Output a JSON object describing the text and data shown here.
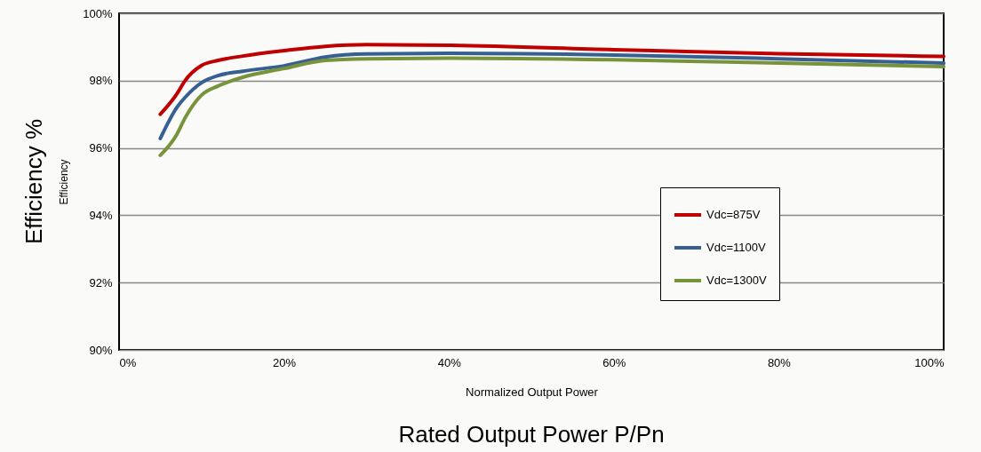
{
  "chart_data": {
    "type": "line",
    "xlabel": "Rated Output Power P/Pn",
    "ylabel": "Efficiency %",
    "annotations": [
      "Efficiency",
      "Normalized Output Power"
    ],
    "x": [
      5,
      7,
      8,
      10,
      12,
      15,
      20,
      25,
      30,
      40,
      60,
      80,
      100
    ],
    "series": [
      {
        "name": "Vdc=875V",
        "color": "#c00000",
        "values": [
          97.0,
          97.6,
          98.0,
          98.45,
          98.6,
          98.73,
          98.89,
          99.02,
          99.07,
          99.05,
          98.92,
          98.8,
          98.72
        ]
      },
      {
        "name": "Vdc=1100V",
        "color": "#376092",
        "values": [
          96.28,
          97.2,
          97.5,
          97.94,
          98.15,
          98.28,
          98.44,
          98.7,
          98.79,
          98.81,
          98.76,
          98.65,
          98.52
        ]
      },
      {
        "name": "Vdc=1300V",
        "color": "#77933c",
        "values": [
          95.78,
          96.4,
          96.89,
          97.57,
          97.84,
          98.1,
          98.36,
          98.6,
          98.65,
          98.67,
          98.62,
          98.52,
          98.42
        ]
      }
    ],
    "xlim": [
      0,
      100
    ],
    "xticks": [
      {
        "value": 0,
        "label": "0%"
      },
      {
        "value": 20,
        "label": "20%"
      },
      {
        "value": 40,
        "label": "40%"
      },
      {
        "value": 60,
        "label": "60%"
      },
      {
        "value": 80,
        "label": "80%"
      },
      {
        "value": 100,
        "label": "100%"
      }
    ],
    "ylim": [
      90,
      100
    ],
    "yticks": [
      {
        "value": 90,
        "label": "90%"
      },
      {
        "value": 92,
        "label": "92%"
      },
      {
        "value": 94,
        "label": "94%"
      },
      {
        "value": 96,
        "label": "96%"
      },
      {
        "value": 98,
        "label": "98%"
      },
      {
        "value": 100,
        "label": "100%"
      }
    ],
    "grid": "y",
    "legend": "right",
    "marker": "none",
    "line_style": "solid"
  }
}
